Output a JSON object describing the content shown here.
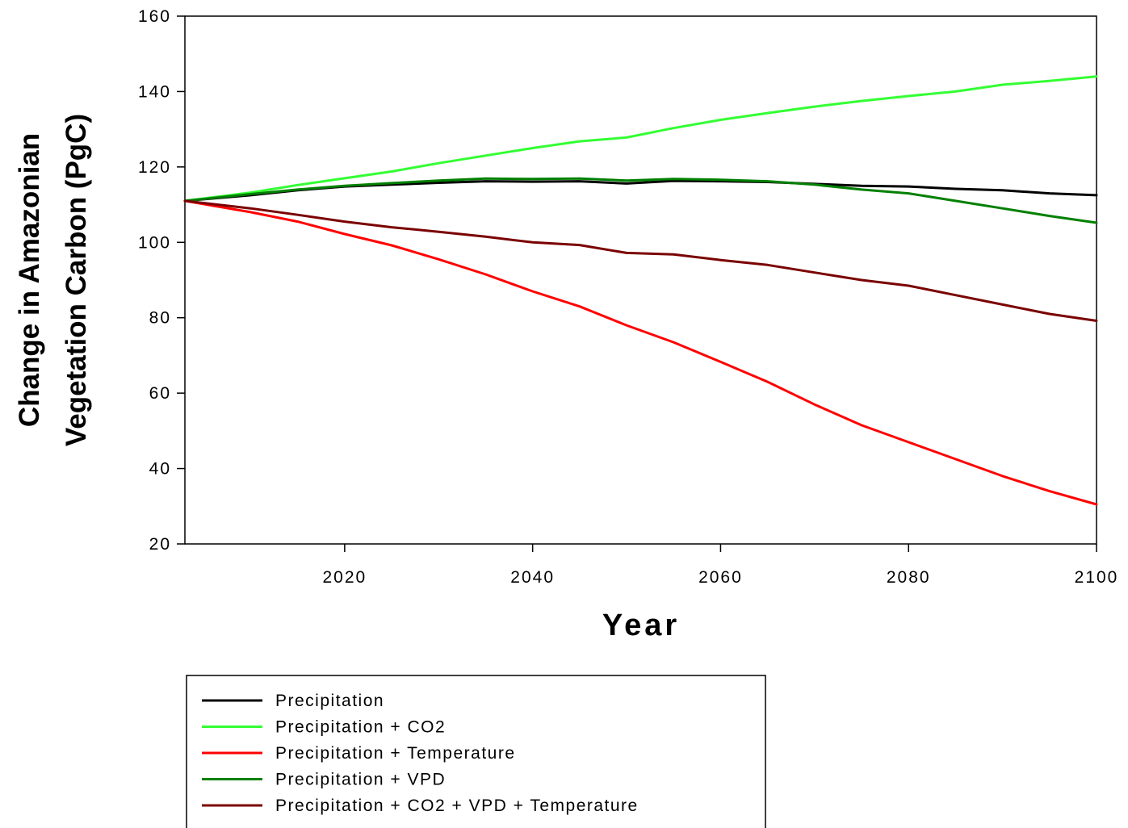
{
  "chart_data": {
    "type": "line",
    "title": "",
    "xlabel": "Year",
    "ylabel_lines": [
      "Change in Amazonian",
      "Vegetation Carbon (PgC)"
    ],
    "xlim": [
      2003,
      2100
    ],
    "ylim": [
      20,
      160
    ],
    "x_ticks": [
      2020,
      2040,
      2060,
      2080,
      2100
    ],
    "y_ticks": [
      20,
      40,
      60,
      80,
      100,
      120,
      140,
      160
    ],
    "grid": false,
    "legend_position": "bottom-left",
    "x": [
      2003,
      2010,
      2015,
      2020,
      2025,
      2030,
      2035,
      2040,
      2045,
      2050,
      2055,
      2060,
      2065,
      2070,
      2075,
      2080,
      2085,
      2090,
      2095,
      2100
    ],
    "series": [
      {
        "name": "Precipitation",
        "color": "#000000",
        "values": [
          111,
          112.5,
          113.8,
          114.8,
          115.3,
          115.8,
          116.2,
          116.1,
          116.2,
          115.6,
          116.3,
          116.2,
          116.0,
          115.5,
          115.0,
          114.8,
          114.2,
          113.8,
          113.0,
          112.5
        ]
      },
      {
        "name": "Precipitation + CO2",
        "color": "#33ff33",
        "values": [
          111,
          113.2,
          115.2,
          117.0,
          118.8,
          121.0,
          123.0,
          125.0,
          126.8,
          127.8,
          130.3,
          132.5,
          134.3,
          136.0,
          137.5,
          138.8,
          140.0,
          141.8,
          142.8,
          144.0
        ]
      },
      {
        "name": "Precipitation + Temperature",
        "color": "#ff0000",
        "values": [
          111,
          108.0,
          105.5,
          102.2,
          99.2,
          95.5,
          91.5,
          87.0,
          83.0,
          78.0,
          73.5,
          68.3,
          63.0,
          57.0,
          51.5,
          47.0,
          42.5,
          38.0,
          34.0,
          30.5
        ]
      },
      {
        "name": "Precipitation + VPD",
        "color": "#008000",
        "values": [
          111,
          112.8,
          114.0,
          115.0,
          115.7,
          116.4,
          116.9,
          116.8,
          116.9,
          116.4,
          116.8,
          116.6,
          116.2,
          115.3,
          114.0,
          113.0,
          111.0,
          109.0,
          107.0,
          105.2
        ]
      },
      {
        "name": "Precipitation + CO2 + VPD + Temperature",
        "color": "#7a0000",
        "values": [
          111,
          109.0,
          107.3,
          105.5,
          104.0,
          102.8,
          101.5,
          100.0,
          99.3,
          97.2,
          96.8,
          95.3,
          94.0,
          92.0,
          90.0,
          88.5,
          86.0,
          83.5,
          81.0,
          79.2
        ]
      }
    ]
  }
}
